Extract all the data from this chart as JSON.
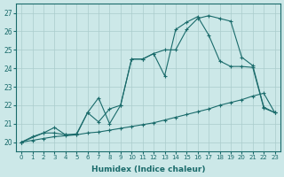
{
  "title": "",
  "xlabel": "Humidex (Indice chaleur)",
  "ylabel": "",
  "bg_color": "#cce8e8",
  "line_color": "#1a6b6b",
  "grid_color": "#aacccc",
  "ylim": [
    19.5,
    27.5
  ],
  "xlim": [
    -0.5,
    23.5
  ],
  "yticks": [
    20,
    21,
    22,
    23,
    24,
    25,
    26,
    27
  ],
  "xticks": [
    0,
    1,
    2,
    3,
    4,
    5,
    6,
    7,
    8,
    9,
    10,
    11,
    12,
    13,
    14,
    15,
    16,
    17,
    18,
    19,
    20,
    21,
    22,
    23
  ],
  "line_straight_x": [
    0,
    1,
    2,
    3,
    4,
    5,
    6,
    7,
    8,
    9,
    10,
    11,
    12,
    13,
    14,
    15,
    16,
    17,
    18,
    19,
    20,
    21,
    22,
    23
  ],
  "line_straight_y": [
    20.0,
    20.1,
    20.2,
    20.3,
    20.35,
    20.4,
    20.5,
    20.55,
    20.65,
    20.75,
    20.85,
    20.95,
    21.05,
    21.2,
    21.35,
    21.5,
    21.65,
    21.8,
    22.0,
    22.15,
    22.3,
    22.5,
    22.65,
    21.6
  ],
  "line_curve_x": [
    0,
    2,
    3,
    4,
    5,
    6,
    7,
    8,
    9,
    10,
    11,
    12,
    13,
    14,
    15,
    16,
    17,
    18,
    19,
    20,
    21,
    22,
    23
  ],
  "line_curve_y": [
    20.0,
    20.5,
    20.5,
    20.4,
    20.4,
    21.6,
    22.4,
    21.0,
    22.0,
    24.5,
    24.5,
    24.8,
    23.6,
    26.1,
    26.5,
    26.8,
    25.8,
    24.4,
    24.1,
    24.1,
    24.05,
    21.85,
    21.6
  ],
  "line_top_x": [
    0,
    1,
    2,
    3,
    4,
    5,
    6,
    7,
    8,
    9,
    10,
    11,
    12,
    13,
    14,
    15,
    16,
    17,
    18,
    19,
    20,
    21,
    22,
    23
  ],
  "line_top_y": [
    20.0,
    20.3,
    20.5,
    20.8,
    20.4,
    20.45,
    21.6,
    21.1,
    21.8,
    22.0,
    24.5,
    24.5,
    24.8,
    25.0,
    25.0,
    26.1,
    26.7,
    26.85,
    26.7,
    26.55,
    24.6,
    24.15,
    21.9,
    21.6
  ]
}
